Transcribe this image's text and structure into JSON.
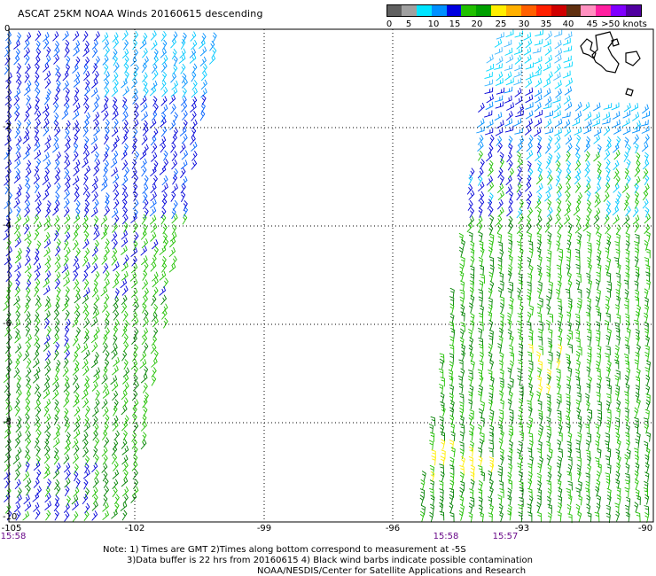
{
  "title": "ASCAT 25KM NOAA Winds 20160615 descending",
  "legend": {
    "segments": [
      {
        "color": "#606060"
      },
      {
        "color": "#a0a0a0"
      },
      {
        "color": "#00e4ff"
      },
      {
        "color": "#0090ff"
      },
      {
        "color": "#0000e0"
      },
      {
        "color": "#20c000"
      },
      {
        "color": "#00a000"
      },
      {
        "color": "#ffee00"
      },
      {
        "color": "#ffb000"
      },
      {
        "color": "#ff6000"
      },
      {
        "color": "#ff2000"
      },
      {
        "color": "#d00000"
      },
      {
        "color": "#603010"
      },
      {
        "color": "#ff90c0"
      },
      {
        "color": "#ff20a0"
      },
      {
        "color": "#8000ff"
      },
      {
        "color": "#5000a0"
      }
    ],
    "labels": [
      "0",
      "5",
      "10",
      "15",
      "20",
      "25",
      "30",
      "35",
      "40",
      "45",
      ">50 knots"
    ]
  },
  "map": {
    "lon_labels": [
      "-105",
      "-102",
      "-99",
      "-96",
      "-93",
      "-90"
    ],
    "lat_labels": [
      "0",
      "-2",
      "-4",
      "-6",
      "-8",
      "-10"
    ],
    "time_labels": [
      "15:58",
      "15:58",
      "15:57"
    ]
  },
  "notes": {
    "line1": "Note: 1) Times are GMT 2)Times along bottom correspond to measurement at -5S",
    "line2": "3)Data buffer is 22 hrs from 20160615 4) Black wind barbs indicate possible contamination",
    "line3": "NOAA/NESDIS/Center for Satellite Applications and Research"
  }
}
